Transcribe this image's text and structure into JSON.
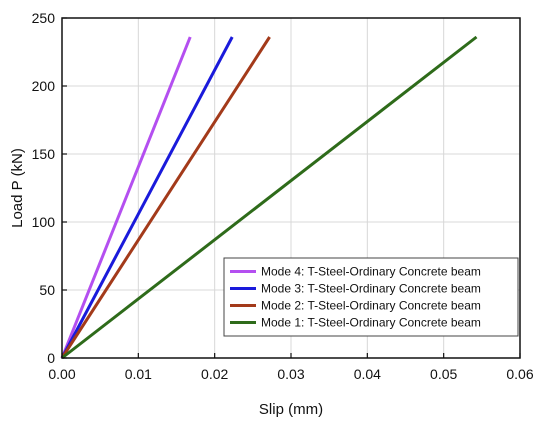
{
  "chart_data": {
    "type": "line",
    "xlabel": "Slip (mm)",
    "ylabel": "Load P (kN)",
    "xlim": [
      0,
      0.06
    ],
    "ylim": [
      0,
      250
    ],
    "xticks": [
      0.0,
      0.01,
      0.02,
      0.03,
      0.04,
      0.05,
      0.06
    ],
    "xtick_labels": [
      "0.00",
      "0.01",
      "0.02",
      "0.03",
      "0.04",
      "0.05",
      "0.06"
    ],
    "yticks": [
      0,
      50,
      100,
      150,
      200,
      250
    ],
    "ytick_labels": [
      "0",
      "50",
      "100",
      "150",
      "200",
      "250"
    ],
    "grid": true,
    "legend_position": "bottom-right",
    "series": [
      {
        "name": "Mode 4: T-Steel-Ordinary Concrete beam",
        "color": "#b44ff0",
        "x": [
          0,
          0.0168
        ],
        "y": [
          0,
          236
        ]
      },
      {
        "name": "Mode 3: T-Steel-Ordinary Concrete beam",
        "color": "#1a1adb",
        "x": [
          0,
          0.0223
        ],
        "y": [
          0,
          236
        ]
      },
      {
        "name": "Mode 2: T-Steel-Ordinary Concrete beam",
        "color": "#a33a1a",
        "x": [
          0,
          0.0272
        ],
        "y": [
          0,
          236
        ]
      },
      {
        "name": "Mode 1: T-Steel-Ordinary Concrete beam",
        "color": "#2e6b1a",
        "x": [
          0,
          0.0543
        ],
        "y": [
          0,
          236
        ]
      }
    ]
  }
}
